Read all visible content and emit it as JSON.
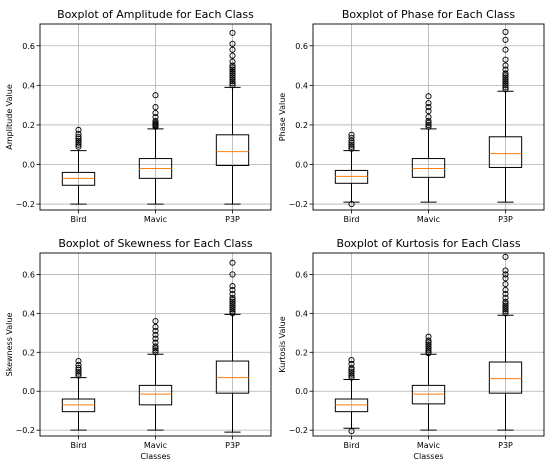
{
  "chart_data": [
    {
      "type": "box",
      "title": "Boxplot of Amplitude for Each Class",
      "xlabel": "",
      "ylabel": "Amplitude Value",
      "categories": [
        "Bird",
        "Mavic",
        "P3P"
      ],
      "ylim": [
        -0.23,
        0.71
      ],
      "yticks": [
        "−0.2",
        "0.0",
        "0.2",
        "0.4",
        "0.6"
      ],
      "grid": true,
      "boxes": [
        {
          "min": -0.2,
          "q1": -0.105,
          "median": -0.07,
          "q3": -0.04,
          "max": 0.07,
          "outliers": [
            0.09,
            0.1,
            0.11,
            0.12,
            0.13,
            0.14,
            0.155,
            0.175
          ]
        },
        {
          "min": -0.2,
          "q1": -0.07,
          "median": -0.02,
          "q3": 0.03,
          "max": 0.18,
          "outliers": [
            0.19,
            0.195,
            0.2,
            0.205,
            0.21,
            0.22,
            0.24,
            0.26,
            0.29,
            0.35
          ]
        },
        {
          "min": -0.2,
          "q1": -0.005,
          "median": 0.065,
          "q3": 0.15,
          "max": 0.39,
          "outliers": [
            0.4,
            0.41,
            0.42,
            0.43,
            0.44,
            0.45,
            0.46,
            0.47,
            0.48,
            0.49,
            0.5,
            0.52,
            0.55,
            0.58,
            0.61,
            0.665
          ]
        }
      ]
    },
    {
      "type": "box",
      "title": "Boxplot of Phase for Each Class",
      "xlabel": "",
      "ylabel": "Phase Value",
      "categories": [
        "Bird",
        "Mavic",
        "P3P"
      ],
      "ylim": [
        -0.23,
        0.71
      ],
      "yticks": [
        "−0.2",
        "0.0",
        "0.2",
        "0.4",
        "0.6"
      ],
      "grid": true,
      "boxes": [
        {
          "min": -0.19,
          "q1": -0.095,
          "median": -0.06,
          "q3": -0.03,
          "max": 0.07,
          "outliers": [
            0.08,
            0.09,
            0.1,
            0.11,
            0.12,
            0.135,
            0.15,
            -0.2
          ]
        },
        {
          "min": -0.19,
          "q1": -0.065,
          "median": -0.02,
          "q3": 0.03,
          "max": 0.18,
          "outliers": [
            0.19,
            0.2,
            0.21,
            0.22,
            0.24,
            0.27,
            0.29,
            0.31,
            0.345
          ]
        },
        {
          "min": -0.19,
          "q1": -0.015,
          "median": 0.055,
          "q3": 0.14,
          "max": 0.37,
          "outliers": [
            0.38,
            0.39,
            0.4,
            0.41,
            0.42,
            0.43,
            0.44,
            0.45,
            0.46,
            0.48,
            0.5,
            0.53,
            0.58,
            0.63,
            0.67
          ]
        }
      ]
    },
    {
      "type": "box",
      "title": "Boxplot of Skewness for Each Class",
      "xlabel": "Classes",
      "ylabel": "Skewness Value",
      "categories": [
        "Bird",
        "Mavic",
        "P3P"
      ],
      "ylim": [
        -0.23,
        0.71
      ],
      "yticks": [
        "−0.2",
        "0.0",
        "0.2",
        "0.4",
        "0.6"
      ],
      "grid": true,
      "boxes": [
        {
          "min": -0.2,
          "q1": -0.105,
          "median": -0.07,
          "q3": -0.04,
          "max": 0.07,
          "outliers": [
            0.08,
            0.09,
            0.1,
            0.11,
            0.12,
            0.135,
            0.155
          ]
        },
        {
          "min": -0.2,
          "q1": -0.07,
          "median": -0.015,
          "q3": 0.03,
          "max": 0.19,
          "outliers": [
            0.2,
            0.21,
            0.22,
            0.23,
            0.25,
            0.27,
            0.29,
            0.31,
            0.33,
            0.36
          ]
        },
        {
          "min": -0.21,
          "q1": -0.01,
          "median": 0.07,
          "q3": 0.155,
          "max": 0.395,
          "outliers": [
            0.4,
            0.41,
            0.42,
            0.43,
            0.44,
            0.45,
            0.46,
            0.47,
            0.48,
            0.5,
            0.52,
            0.54,
            0.6,
            0.66
          ]
        }
      ]
    },
    {
      "type": "box",
      "title": "Boxplot of Kurtosis for Each Class",
      "xlabel": "Classes",
      "ylabel": "Kurtosis Value",
      "categories": [
        "Bird",
        "Mavic",
        "P3P"
      ],
      "ylim": [
        -0.23,
        0.71
      ],
      "yticks": [
        "−0.2",
        "0.0",
        "0.2",
        "0.4",
        "0.6"
      ],
      "grid": true,
      "boxes": [
        {
          "min": -0.19,
          "q1": -0.105,
          "median": -0.07,
          "q3": -0.04,
          "max": 0.06,
          "outliers": [
            0.07,
            0.08,
            0.09,
            0.1,
            0.11,
            0.12,
            0.14,
            0.16,
            -0.205
          ]
        },
        {
          "min": -0.2,
          "q1": -0.065,
          "median": -0.015,
          "q3": 0.03,
          "max": 0.19,
          "outliers": [
            0.195,
            0.2,
            0.21,
            0.22,
            0.23,
            0.24,
            0.25,
            0.26,
            0.28
          ]
        },
        {
          "min": -0.2,
          "q1": -0.01,
          "median": 0.065,
          "q3": 0.15,
          "max": 0.39,
          "outliers": [
            0.4,
            0.41,
            0.42,
            0.43,
            0.44,
            0.45,
            0.46,
            0.48,
            0.5,
            0.52,
            0.55,
            0.58,
            0.6,
            0.62,
            0.69
          ]
        }
      ]
    }
  ],
  "colors": {
    "box": "#000000",
    "median": "#ff7f0e",
    "grid": "#b0b0b0",
    "background": "#ffffff"
  }
}
